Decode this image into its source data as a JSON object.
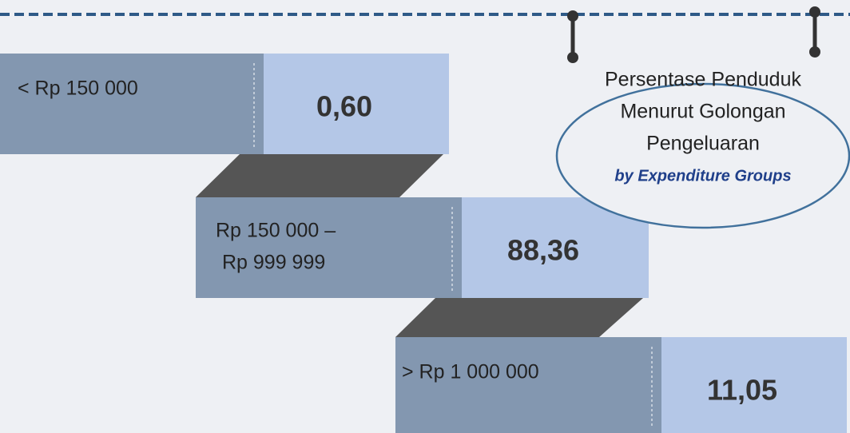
{
  "title": {
    "lines": [
      "Persentase Penduduk",
      "Menurut Golongan",
      "Pengeluaran"
    ],
    "subtitle": "by Expenditure Groups"
  },
  "groups": [
    {
      "label": [
        "< Rp 150 000"
      ],
      "value": "0,60"
    },
    {
      "label": [
        "Rp 150 000 –",
        "Rp 999 999"
      ],
      "value": "88,36"
    },
    {
      "label": [
        "> Rp 1 000 000"
      ],
      "value": "11,05"
    }
  ]
}
